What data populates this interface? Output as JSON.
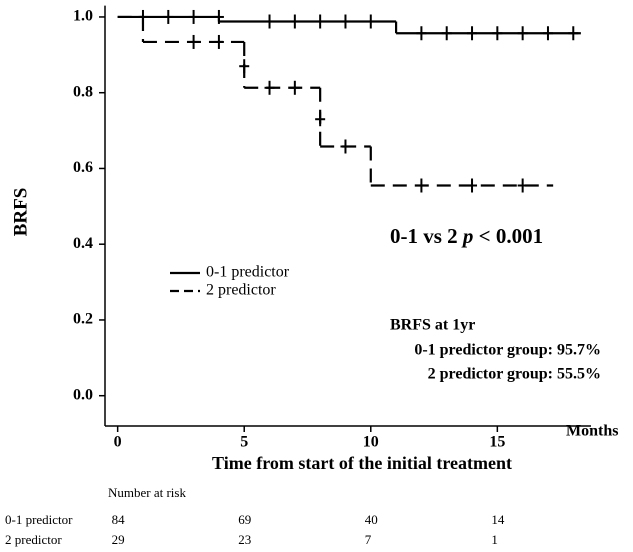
{
  "chart_data": {
    "type": "step",
    "y_label": "BRFS",
    "x_label": "Time from start of the initial treatment",
    "x_unit": "Months",
    "xlim": [
      -0.5,
      18.7
    ],
    "ylim": [
      -0.08,
      1.03
    ],
    "xticks": [
      0,
      5,
      10,
      15
    ],
    "yticks": [
      {
        "value": 0,
        "label": "0.0"
      },
      0.2,
      0.4,
      0.6,
      0.8,
      {
        "value": 1,
        "label": "1.0"
      }
    ],
    "series": [
      {
        "name": "0-1 predictor",
        "color": "#000000",
        "dash": false,
        "x": [
          0,
          4,
          11,
          18.3
        ],
        "values": [
          1.0,
          0.988,
          0.957,
          0.957
        ],
        "censor_x": [
          1,
          2,
          3,
          4,
          6,
          7,
          8,
          9,
          10,
          12,
          13,
          14,
          15,
          16,
          17,
          18
        ],
        "censor_y": [
          1.0,
          1.0,
          1.0,
          1.0,
          0.988,
          0.988,
          0.988,
          0.988,
          0.988,
          0.957,
          0.957,
          0.957,
          0.957,
          0.957,
          0.957,
          0.957
        ]
      },
      {
        "name": "2 predictor",
        "color": "#000000",
        "dash": true,
        "x": [
          0,
          1,
          5,
          8,
          10,
          17.2
        ],
        "values": [
          1.0,
          0.934,
          0.813,
          0.658,
          0.555,
          0.555
        ],
        "censor_x": [
          3,
          4,
          5,
          6,
          7,
          8,
          9,
          12,
          14,
          16
        ],
        "censor_y": [
          0.934,
          0.934,
          0.87,
          0.813,
          0.813,
          0.73,
          0.658,
          0.555,
          0.555,
          0.555
        ]
      }
    ],
    "annotation": [
      "0-1 vs 2",
      "p",
      "< 0.001"
    ],
    "summary": [
      "BRFS at 1yr",
      "0-1 predictor group: 95.7%",
      "2 predictor group: 55.5%"
    ],
    "risk_table": {
      "title": "Number at risk",
      "rows": [
        {
          "label": "0-1 predictor",
          "values": [
            84,
            69,
            40,
            14
          ]
        },
        {
          "label": "2 predictor",
          "values": [
            29,
            23,
            7,
            1
          ]
        }
      ]
    }
  }
}
